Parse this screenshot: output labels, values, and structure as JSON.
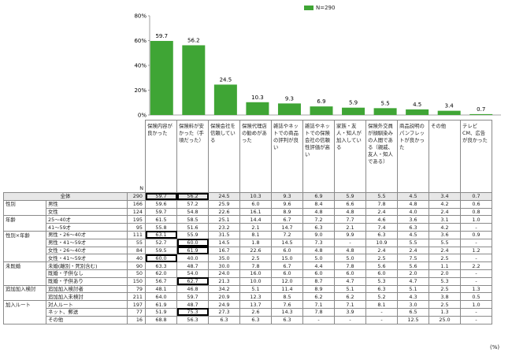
{
  "chart_data": {
    "type": "bar",
    "legend": "N=290",
    "color": "#3fa535",
    "ylim": [
      0,
      80
    ],
    "yticks": [
      "0%",
      "20%",
      "40%",
      "60%",
      "80%"
    ],
    "categories": [
      "保険内容が良かった",
      "保険料が安かった（手頃だった）",
      "保険会社を信頼している",
      "保険代理店の勧めがあった",
      "雑誌やネットでの商品の評判が良い",
      "雑誌やネットでの保険会社の信頼性評価が高い",
      "家族・友人・知人が加入している",
      "保険外交員が顔馴染みの人間である（親戚、友人・知人である）",
      "商品説明のパンフレットが良かった",
      "その他",
      "テレビCM、広告が良かった"
    ],
    "values": [
      59.7,
      56.2,
      24.5,
      10.3,
      9.3,
      6.9,
      5.9,
      5.5,
      4.5,
      3.4,
      0.7
    ],
    "unit": "(%)"
  },
  "table": {
    "n_label": "N",
    "rows": [
      {
        "group": "",
        "label": "全体",
        "n": "290",
        "vals": [
          "59.7",
          "56.2",
          "24.5",
          "10.3",
          "9.3",
          "6.9",
          "5.9",
          "5.5",
          "4.5",
          "3.4",
          "0.7"
        ],
        "hl": [
          0,
          1
        ],
        "total": true
      },
      {
        "group": "性別",
        "label": "男性",
        "n": "166",
        "vals": [
          "59.6",
          "57.2",
          "25.9",
          "6.0",
          "9.6",
          "8.4",
          "6.6",
          "7.8",
          "4.8",
          "4.2",
          "0.6"
        ],
        "hl": []
      },
      {
        "group": "",
        "label": "女性",
        "n": "124",
        "vals": [
          "59.7",
          "54.8",
          "22.6",
          "16.1",
          "8.9",
          "4.8",
          "4.8",
          "2.4",
          "4.0",
          "2.4",
          "0.8"
        ],
        "hl": []
      },
      {
        "group": "年齢",
        "label": "25～40才",
        "n": "195",
        "vals": [
          "61.5",
          "58.5",
          "25.1",
          "14.4",
          "6.7",
          "7.2",
          "7.7",
          "4.6",
          "3.6",
          "3.1",
          "1.0"
        ],
        "hl": []
      },
      {
        "group": "",
        "label": "41～59才",
        "n": "95",
        "vals": [
          "55.8",
          "51.6",
          "23.2",
          "2.1",
          "14.7",
          "6.3",
          "2.1",
          "7.4",
          "6.3",
          "4.2",
          "-"
        ],
        "hl": []
      },
      {
        "group": "性別×年齢",
        "label": "男性・26～40才",
        "n": "111",
        "vals": [
          "63.1",
          "55.9",
          "31.5",
          "8.1",
          "7.2",
          "9.0",
          "9.9",
          "6.3",
          "4.5",
          "3.6",
          "0.9"
        ],
        "hl": [
          0
        ]
      },
      {
        "group": "",
        "label": "男性・41～59才",
        "n": "55",
        "vals": [
          "52.7",
          "60.0",
          "14.5",
          "1.8",
          "14.5",
          "7.3",
          "-",
          "10.9",
          "5.5",
          "5.5",
          "-"
        ],
        "hl": [
          1
        ]
      },
      {
        "group": "",
        "label": "女性・26～40才",
        "n": "84",
        "vals": [
          "59.5",
          "61.9",
          "16.7",
          "22.6",
          "6.0",
          "4.8",
          "4.8",
          "2.4",
          "2.4",
          "2.4",
          "1.2"
        ],
        "hl": [
          1
        ]
      },
      {
        "group": "",
        "label": "女性・41～59才",
        "n": "40",
        "vals": [
          "60.0",
          "40.0",
          "35.0",
          "2.5",
          "15.0",
          "5.0",
          "5.0",
          "2.5",
          "7.5",
          "2.5",
          "-"
        ],
        "hl": [
          0
        ]
      },
      {
        "group": "未既婚",
        "label": "未婚(離別・死別含む)",
        "n": "90",
        "vals": [
          "63.3",
          "48.7",
          "30.0",
          "7.8",
          "6.7",
          "4.4",
          "7.8",
          "5.6",
          "5.6",
          "1.1",
          "2.2"
        ],
        "hl": []
      },
      {
        "group": "",
        "label": "既婚・子供なし",
        "n": "50",
        "vals": [
          "62.0",
          "54.0",
          "24.0",
          "16.0",
          "6.0",
          "6.0",
          "6.0",
          "6.0",
          "2.0",
          "2.0",
          "-"
        ],
        "hl": []
      },
      {
        "group": "",
        "label": "既婚・子供あり",
        "n": "150",
        "vals": [
          "56.7",
          "62.7",
          "21.3",
          "10.0",
          "12.0",
          "8.7",
          "4.7",
          "5.3",
          "4.7",
          "5.3",
          "-"
        ],
        "hl": [
          1
        ]
      },
      {
        "group": "追加加入検討",
        "label": "追加加入検討者",
        "n": "79",
        "vals": [
          "48.1",
          "46.8",
          "34.2",
          "5.1",
          "11.4",
          "8.9",
          "5.1",
          "6.3",
          "5.1",
          "2.5",
          "1.3"
        ],
        "hl": []
      },
      {
        "group": "",
        "label": "追加加入未検討",
        "n": "211",
        "vals": [
          "64.0",
          "59.7",
          "20.9",
          "12.3",
          "8.5",
          "6.2",
          "6.2",
          "5.2",
          "4.3",
          "3.8",
          "0.5"
        ],
        "hl": []
      },
      {
        "group": "加入ルート",
        "label": "対人ルート",
        "n": "197",
        "vals": [
          "61.9",
          "48.7",
          "24.9",
          "13.7",
          "7.6",
          "7.1",
          "7.1",
          "8.1",
          "3.0",
          "2.5",
          "1.0"
        ],
        "hl": []
      },
      {
        "group": "",
        "label": "ネット、郵送",
        "n": "77",
        "vals": [
          "51.9",
          "75.3",
          "27.3",
          "2.6",
          "14.3",
          "7.8",
          "3.9",
          "-",
          "6.5",
          "1.3",
          "-"
        ],
        "hl": [
          1
        ]
      },
      {
        "group": "",
        "label": "その他",
        "n": "16",
        "vals": [
          "68.8",
          "56.3",
          "6.3",
          "6.3",
          "6.3",
          "-",
          "-",
          "-",
          "12.5",
          "25.0",
          "-"
        ],
        "hl": []
      }
    ]
  }
}
